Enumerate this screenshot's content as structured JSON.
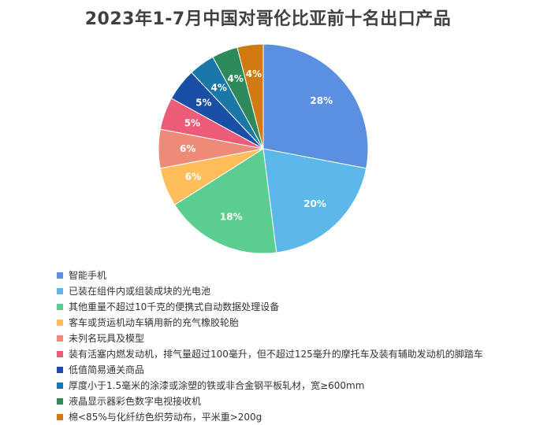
{
  "chart_data": {
    "type": "pie",
    "title": "2023年1-7月中国对哥伦比亚前十名出口产品",
    "slices": [
      {
        "name": "智能手机",
        "value": 28,
        "label": "28%",
        "color": "#5B8FE0"
      },
      {
        "name": "已装在组件内或组装成块的光电池",
        "value": 20,
        "label": "20%",
        "color": "#5BB8E8"
      },
      {
        "name": "其他重量不超过10千克的便携式自动数据处理设备",
        "value": 18,
        "label": "18%",
        "color": "#5CCD90"
      },
      {
        "name": "客车或货运机动车辆用新的充气橡胶轮胎",
        "value": 6,
        "label": "6%",
        "color": "#FFBE5C"
      },
      {
        "name": "未列名玩具及模型",
        "value": 6,
        "label": "6%",
        "color": "#EE8A78"
      },
      {
        "name": "装有活塞内燃发动机，排气量超过100毫升，但不超过125毫升的摩托车及装有辅助发动机的脚踏车",
        "value": 5,
        "label": "5%",
        "color": "#EC5C78"
      },
      {
        "name": "低值简易通关商品",
        "value": 5,
        "label": "5%",
        "color": "#1A4FA8"
      },
      {
        "name": "厚度小于1.5毫米的涂漆或涂塑的铁或非合金钢平板轧材，宽≥600mm",
        "value": 4,
        "label": "4%",
        "color": "#1A78A8"
      },
      {
        "name": "液晶显示器彩色数字电视接收机",
        "value": 4,
        "label": "4%",
        "color": "#2E8A5A"
      },
      {
        "name": "棉<85%与化纤纺色织劳动布，平米重>200g",
        "value": 4,
        "label": "4%",
        "color": "#D07A10"
      }
    ],
    "legend_position": "bottom-left"
  }
}
